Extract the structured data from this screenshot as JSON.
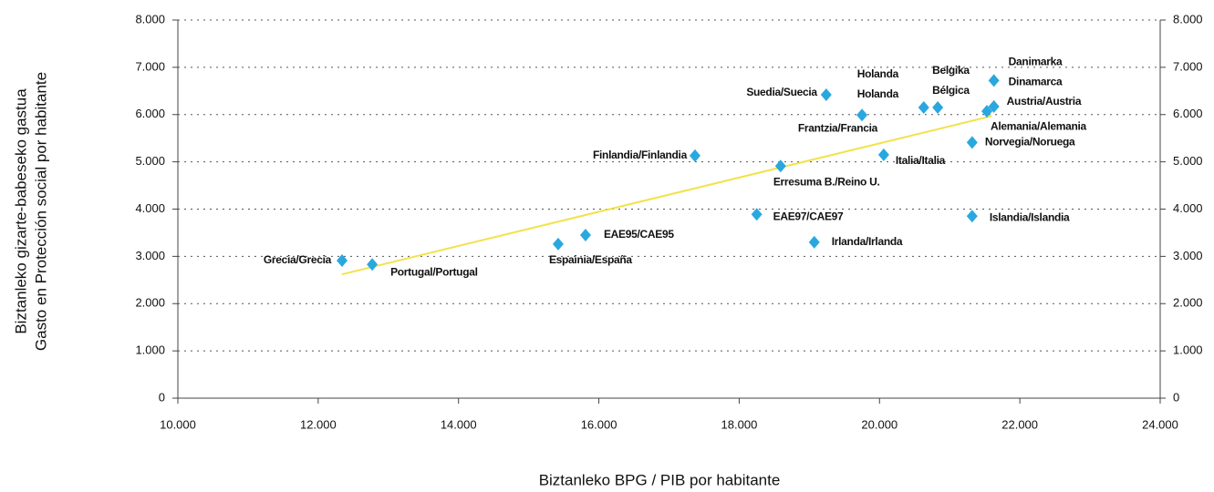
{
  "chart_data": {
    "type": "scatter",
    "x_label": "Biztanleko BPG / PIB por habitante",
    "y_label": [
      "Biztanleko gizarte-babeseko gastua",
      "Gasto en Protección social por habitante"
    ],
    "labels": [
      [
        "Grecia/Grecia"
      ],
      [
        "Portugal/Portugal"
      ],
      [
        "Espainia/España"
      ],
      [
        "EAE95/CAE95"
      ],
      [
        "Finlandia/Finlandia"
      ],
      [
        "Erresuma B./Reino U."
      ],
      [
        "EAE97/CAE97"
      ],
      [
        "Irlanda/Irlanda"
      ],
      [
        "Suedia/Suecia"
      ],
      [
        "Frantzia/Francia"
      ],
      [
        "Italia/Italia"
      ],
      [
        "Holanda",
        "Holanda"
      ],
      [
        "Belgika",
        "Bélgica"
      ],
      [
        "Danimarka",
        "Dinamarca"
      ],
      [
        "Austria/Austria"
      ],
      [
        "Alemania/Alemania"
      ],
      [
        "Norvegia/Noruega"
      ],
      [
        "Islandia/Islandia"
      ]
    ],
    "x": [
      12340,
      12770,
      15420,
      15810,
      17370,
      18590,
      18250,
      19070,
      19240,
      19750,
      20060,
      20630,
      20830,
      21630,
      21630,
      21530,
      21320,
      21320
    ],
    "values": [
      2910,
      2830,
      3260,
      3450,
      5130,
      4910,
      3890,
      3300,
      6420,
      5990,
      5150,
      6150,
      6150,
      6720,
      6170,
      6070,
      5410,
      3850
    ],
    "color": "#29a8e0",
    "trendline": {
      "x": [
        12340,
        21600
      ],
      "y": [
        2620,
        5970
      ],
      "color": "#f2e24a"
    },
    "xlim": [
      10000,
      24000
    ],
    "xticks": [
      {
        "value": 10000,
        "label": "10.000"
      },
      {
        "value": 12000,
        "label": "12.000"
      },
      {
        "value": 14000,
        "label": "14.000"
      },
      {
        "value": 16000,
        "label": "16.000"
      },
      {
        "value": 18000,
        "label": "18.000"
      },
      {
        "value": 20000,
        "label": "20.000"
      },
      {
        "value": 22000,
        "label": "22.000"
      },
      {
        "value": 24000,
        "label": "24.000"
      }
    ],
    "ylim": [
      0,
      8000
    ],
    "yticks": [
      0,
      {
        "value": 1000,
        "label": "1.000"
      },
      {
        "value": 2000,
        "label": "2.000"
      },
      {
        "value": 3000,
        "label": "3.000"
      },
      {
        "value": 4000,
        "label": "4.000"
      },
      {
        "value": 5000,
        "label": "5.000"
      },
      {
        "value": 6000,
        "label": "6.000"
      },
      {
        "value": 7000,
        "label": "7.000"
      },
      {
        "value": 8000,
        "label": "8.000"
      }
    ],
    "y2lim": [
      0,
      8000
    ],
    "y2ticks": [
      0,
      {
        "value": 1000,
        "label": "1.000"
      },
      {
        "value": 2000,
        "label": "2.000"
      },
      {
        "value": 3000,
        "label": "3.000"
      },
      {
        "value": 4000,
        "label": "4.000"
      },
      {
        "value": 5000,
        "label": "5.000"
      },
      {
        "value": 6000,
        "label": "6.000"
      },
      {
        "value": 7000,
        "label": "7.000"
      },
      {
        "value": 8000,
        "label": "8.000"
      }
    ],
    "grid": true
  }
}
